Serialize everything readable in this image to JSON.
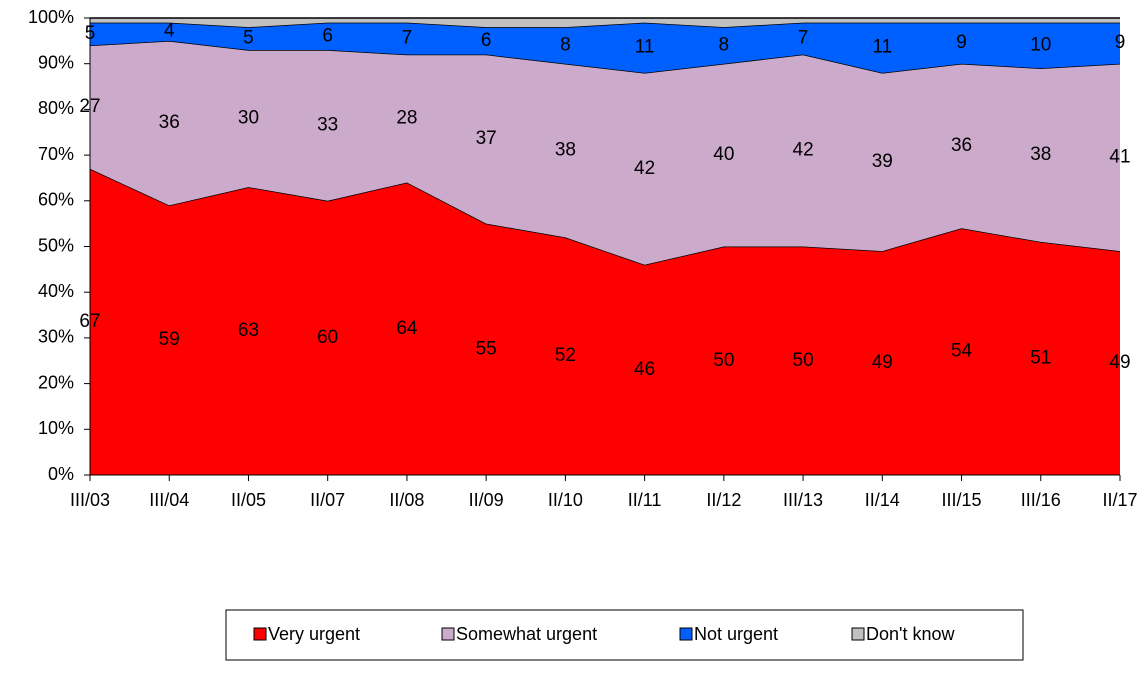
{
  "chart_data": {
    "type": "stacked_area",
    "categories": [
      "III/03",
      "III/04",
      "II/05",
      "II/07",
      "II/08",
      "II/09",
      "II/10",
      "II/11",
      "II/12",
      "III/13",
      "II/14",
      "III/15",
      "III/16",
      "II/17"
    ],
    "series": [
      {
        "name": "Very urgent",
        "color": "#ff0000",
        "data_labels": true,
        "values": [
          67,
          59,
          63,
          60,
          64,
          55,
          52,
          46,
          50,
          50,
          49,
          54,
          51,
          49
        ]
      },
      {
        "name": "Somewhat urgent",
        "color": "#ccaacc",
        "data_labels": true,
        "values": [
          27,
          36,
          30,
          33,
          28,
          37,
          38,
          42,
          40,
          42,
          39,
          36,
          38,
          41
        ]
      },
      {
        "name": "Not urgent",
        "color": "#0060ff",
        "data_labels": true,
        "values": [
          5,
          4,
          5,
          6,
          7,
          6,
          8,
          11,
          8,
          7,
          11,
          9,
          10,
          9
        ]
      },
      {
        "name": "Don't know",
        "color": "#c0c0c0",
        "data_labels": false,
        "values": [
          1,
          1,
          2,
          1,
          1,
          2,
          2,
          1,
          2,
          1,
          1,
          1,
          1,
          1
        ]
      }
    ],
    "ylim": [
      0,
      100
    ],
    "yticks": [
      {
        "value": 0,
        "label": "0%"
      },
      {
        "value": 10,
        "label": "10%"
      },
      {
        "value": 20,
        "label": "20%"
      },
      {
        "value": 30,
        "label": "30%"
      },
      {
        "value": 40,
        "label": "40%"
      },
      {
        "value": 50,
        "label": "50%"
      },
      {
        "value": 60,
        "label": "60%"
      },
      {
        "value": 70,
        "label": "70%"
      },
      {
        "value": 80,
        "label": "80%"
      },
      {
        "value": 90,
        "label": "90%"
      },
      {
        "value": 100,
        "label": "100%"
      }
    ],
    "legend": "bottom"
  }
}
